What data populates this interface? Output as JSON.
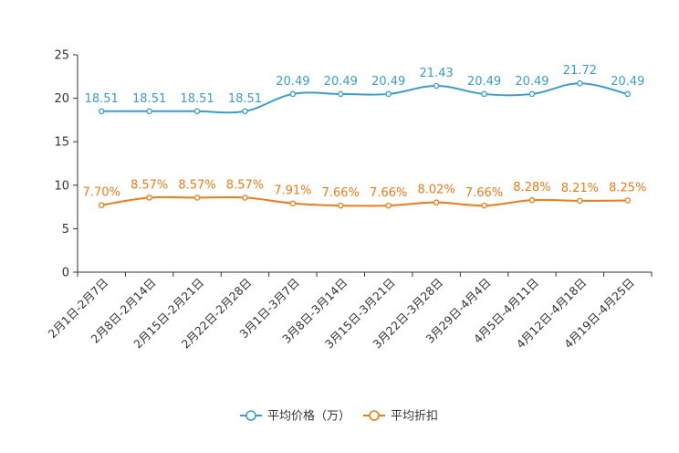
{
  "chart_data": {
    "type": "line",
    "title": "",
    "xlabel": "",
    "ylabel": "",
    "ylim": [
      0,
      25
    ],
    "yticks": [
      0,
      5,
      10,
      15,
      20,
      25
    ],
    "grid": false,
    "legend_position": "bottom-center",
    "categories": [
      "2月1日-2月7日",
      "2月8日-2月14日",
      "2月15日-2月21日",
      "2月22日-2月28日",
      "3月1日-3月7日",
      "3月8日-3月14日",
      "3月15日-3月21日",
      "3月22日-3月28日",
      "3月29日-4月4日",
      "4月5日-4月11日",
      "4月12日-4月18日",
      "4月19日-4月25日"
    ],
    "series": [
      {
        "name": "平均价格（万）",
        "color": "#3d9ccc",
        "values": [
          18.51,
          18.51,
          18.51,
          18.51,
          20.49,
          20.49,
          20.49,
          21.43,
          20.49,
          20.49,
          21.72,
          20.49
        ],
        "labels": [
          "18.51",
          "18.51",
          "18.51",
          "18.51",
          "20.49",
          "20.49",
          "20.49",
          "21.43",
          "20.49",
          "20.49",
          "21.72",
          "20.49"
        ]
      },
      {
        "name": "平均折扣",
        "color": "#f07a1a",
        "values": [
          7.7,
          8.57,
          8.57,
          8.57,
          7.91,
          7.66,
          7.66,
          8.02,
          7.66,
          8.28,
          8.21,
          8.25
        ],
        "labels": [
          "7.70%",
          "8.57%",
          "8.57%",
          "8.57%",
          "7.91%",
          "7.66%",
          "7.66%",
          "8.02%",
          "7.66%",
          "8.28%",
          "8.21%",
          "8.25%"
        ]
      }
    ]
  }
}
